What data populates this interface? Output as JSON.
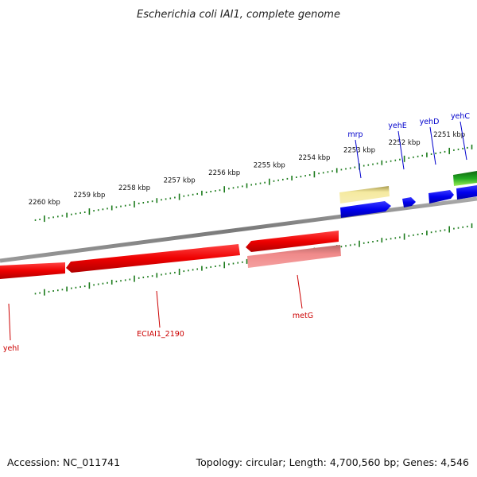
{
  "title": "Escherichia coli IAI1, complete genome",
  "footer": {
    "accession": "Accession: NC_011741",
    "summary": "Topology: circular; Length: 4,700,560 bp; Genes: 4,546"
  },
  "colors": {
    "backbone": "#808080",
    "forward_gene": "#0000ee",
    "reverse_gene": "#ee0000",
    "reverse_product": "#f08080",
    "forward_product_pale": "#f3e9a6",
    "forward_product_green": "#22aa22",
    "ticks": "#1a7a1a",
    "forward_label": "#0000cc",
    "reverse_label": "#cc0000"
  },
  "scale": {
    "unit": "kbp",
    "labeled_ticks_kbp": [
      2251,
      2252,
      2253,
      2254,
      2255,
      2256,
      2257,
      2258,
      2259,
      2260
    ]
  },
  "gene_labels": [
    {
      "name": "yehC",
      "strand": "forward"
    },
    {
      "name": "yehD",
      "strand": "forward"
    },
    {
      "name": "yehE",
      "strand": "forward"
    },
    {
      "name": "mrp",
      "strand": "forward"
    },
    {
      "name": "metG",
      "strand": "reverse"
    },
    {
      "name": "ECIAI1_2190",
      "strand": "reverse"
    },
    {
      "name": "yehI",
      "strand": "reverse"
    }
  ]
}
